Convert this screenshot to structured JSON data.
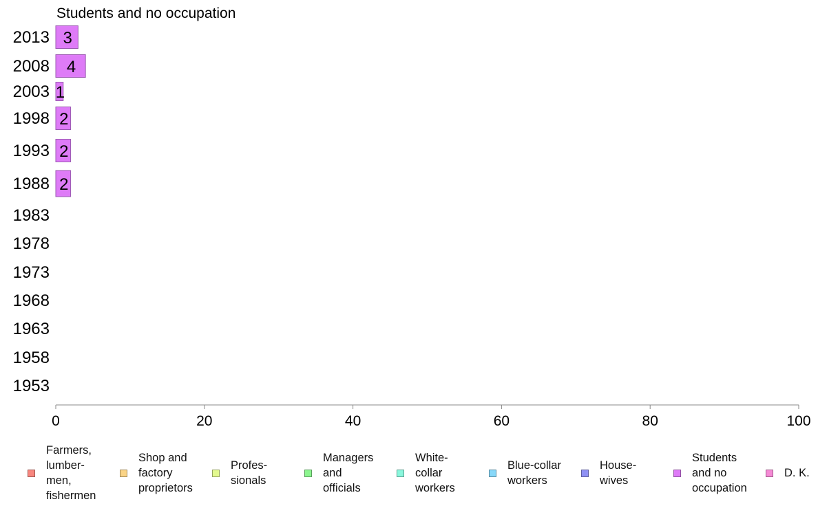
{
  "chart_data": {
    "type": "bar",
    "orientation": "horizontal",
    "title": "Students and no occupation",
    "categories": [
      "2013",
      "2008",
      "2003",
      "1998",
      "1993",
      "1988",
      "1983",
      "1978",
      "1973",
      "1968",
      "1963",
      "1958",
      "1953"
    ],
    "series": [
      {
        "name": "Students and no occupation",
        "values": [
          3,
          4,
          1,
          2,
          2,
          2,
          null,
          null,
          null,
          null,
          null,
          null,
          null
        ],
        "value_labels": [
          "3",
          "4",
          "1",
          "2",
          "2",
          "2",
          "",
          "",
          "",
          "",
          "",
          "",
          ""
        ],
        "color": "#DE7BF7"
      }
    ],
    "xlim": [
      0,
      100
    ],
    "xticks": [
      "0",
      "20",
      "40",
      "60",
      "80",
      "100"
    ],
    "xlabel": "",
    "ylabel": "",
    "grid": false,
    "legend_position": "bottom",
    "legend": [
      {
        "label": "Farmers,\nlumber-\nmen,\nfishermen",
        "color": "#F8877F"
      },
      {
        "label": "Shop and\nfactory\nproprietors",
        "color": "#FAD487"
      },
      {
        "label": "Profes-\nsionals",
        "color": "#E3F98F"
      },
      {
        "label": "Managers\nand\nofficials",
        "color": "#8CF58F"
      },
      {
        "label": "White-\ncollar\nworkers",
        "color": "#8AF7DD"
      },
      {
        "label": "Blue-collar\nworkers",
        "color": "#88D8F9"
      },
      {
        "label": "House-\nwives",
        "color": "#8F91F4"
      },
      {
        "label": "Students\nand no\noccupation",
        "color": "#DE7BF7"
      },
      {
        "label": "D. K.",
        "color": "#F58AD5"
      }
    ]
  }
}
